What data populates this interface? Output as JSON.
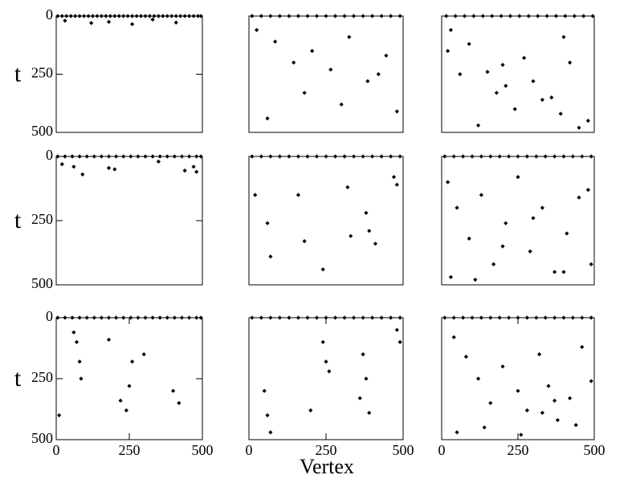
{
  "chart_data": [
    {
      "type": "scatter",
      "color": "#000000",
      "xlim": [
        0,
        500
      ],
      "ylim": [
        500,
        0
      ],
      "yticks": [
        0,
        250,
        500
      ],
      "ylabel": "t",
      "x": [
        5,
        20,
        35,
        50,
        65,
        80,
        95,
        110,
        125,
        140,
        155,
        170,
        185,
        200,
        215,
        230,
        245,
        260,
        275,
        290,
        305,
        320,
        335,
        350,
        365,
        380,
        395,
        410,
        425,
        440,
        455,
        470,
        485,
        495,
        30,
        120,
        180,
        260,
        330,
        410
      ],
      "y": [
        0,
        0,
        0,
        0,
        0,
        0,
        0,
        0,
        0,
        0,
        0,
        0,
        0,
        0,
        0,
        0,
        0,
        0,
        0,
        0,
        0,
        0,
        0,
        0,
        0,
        0,
        0,
        0,
        0,
        0,
        0,
        0,
        0,
        0,
        20,
        30,
        25,
        35,
        15,
        28
      ]
    },
    {
      "type": "scatter",
      "color": "#000000",
      "xlim": [
        0,
        500
      ],
      "ylim": [
        500,
        0
      ],
      "x": [
        10,
        40,
        70,
        100,
        130,
        160,
        190,
        220,
        250,
        280,
        310,
        340,
        370,
        400,
        430,
        460,
        490,
        25,
        85,
        145,
        205,
        265,
        325,
        385,
        445,
        60,
        180,
        300,
        420,
        480
      ],
      "y": [
        0,
        0,
        0,
        0,
        0,
        0,
        0,
        0,
        0,
        0,
        0,
        0,
        0,
        0,
        0,
        0,
        0,
        60,
        110,
        200,
        150,
        230,
        90,
        280,
        170,
        440,
        330,
        380,
        250,
        410
      ]
    },
    {
      "type": "scatter",
      "color": "#000000",
      "xlim": [
        0,
        500
      ],
      "ylim": [
        500,
        0
      ],
      "x": [
        15,
        45,
        75,
        105,
        135,
        165,
        195,
        225,
        255,
        285,
        315,
        345,
        375,
        405,
        435,
        465,
        495,
        30,
        90,
        150,
        210,
        270,
        330,
        390,
        450,
        60,
        180,
        300,
        420,
        480,
        120,
        240,
        360,
        20,
        200,
        400
      ],
      "y": [
        0,
        0,
        0,
        0,
        0,
        0,
        0,
        0,
        0,
        0,
        0,
        0,
        0,
        0,
        0,
        0,
        0,
        60,
        120,
        240,
        300,
        180,
        360,
        420,
        480,
        250,
        330,
        280,
        200,
        450,
        470,
        400,
        350,
        150,
        210,
        90
      ]
    },
    {
      "type": "scatter",
      "color": "#000000",
      "xlim": [
        0,
        500
      ],
      "ylim": [
        500,
        0
      ],
      "yticks": [
        0,
        250,
        500
      ],
      "ylabel": "t",
      "x": [
        5,
        30,
        55,
        80,
        105,
        130,
        155,
        180,
        205,
        230,
        255,
        280,
        305,
        330,
        355,
        380,
        405,
        430,
        455,
        480,
        495,
        20,
        60,
        90,
        180,
        200,
        350,
        440,
        470,
        480
      ],
      "y": [
        0,
        0,
        0,
        0,
        0,
        0,
        0,
        0,
        0,
        0,
        0,
        0,
        0,
        0,
        0,
        0,
        0,
        0,
        0,
        0,
        0,
        30,
        40,
        70,
        45,
        50,
        20,
        55,
        40,
        60
      ]
    },
    {
      "type": "scatter",
      "color": "#000000",
      "xlim": [
        0,
        500
      ],
      "ylim": [
        500,
        0
      ],
      "x": [
        10,
        40,
        70,
        100,
        130,
        160,
        190,
        220,
        250,
        280,
        310,
        340,
        370,
        400,
        430,
        460,
        490,
        20,
        60,
        160,
        180,
        320,
        330,
        380,
        390,
        470,
        480,
        70,
        240,
        410
      ],
      "y": [
        0,
        0,
        0,
        0,
        0,
        0,
        0,
        0,
        0,
        0,
        0,
        0,
        0,
        0,
        0,
        0,
        0,
        150,
        260,
        150,
        330,
        120,
        310,
        220,
        290,
        80,
        110,
        390,
        440,
        340
      ]
    },
    {
      "type": "scatter",
      "color": "#000000",
      "xlim": [
        0,
        500
      ],
      "ylim": [
        500,
        0
      ],
      "x": [
        10,
        40,
        70,
        100,
        130,
        160,
        190,
        220,
        250,
        280,
        310,
        340,
        370,
        400,
        430,
        460,
        490,
        20,
        50,
        90,
        130,
        170,
        210,
        250,
        290,
        330,
        370,
        410,
        450,
        490,
        30,
        110,
        200,
        300,
        400,
        480
      ],
      "y": [
        0,
        0,
        0,
        0,
        0,
        0,
        0,
        0,
        0,
        0,
        0,
        0,
        0,
        0,
        0,
        0,
        0,
        100,
        200,
        320,
        150,
        420,
        260,
        80,
        370,
        200,
        450,
        300,
        160,
        420,
        470,
        480,
        350,
        240,
        450,
        130
      ]
    },
    {
      "type": "scatter",
      "color": "#000000",
      "xlim": [
        0,
        500
      ],
      "ylim": [
        500,
        0
      ],
      "xticks": [
        0,
        250,
        500
      ],
      "yticks": [
        0,
        250,
        500
      ],
      "ylabel": "t",
      "x": [
        5,
        30,
        55,
        80,
        105,
        130,
        155,
        180,
        205,
        230,
        255,
        280,
        305,
        330,
        355,
        380,
        405,
        430,
        455,
        480,
        495,
        70,
        80,
        85,
        260,
        250,
        220,
        240,
        300,
        400,
        420,
        10,
        60,
        180
      ],
      "y": [
        0,
        0,
        0,
        0,
        0,
        0,
        0,
        0,
        0,
        0,
        0,
        0,
        0,
        0,
        0,
        0,
        0,
        0,
        0,
        0,
        0,
        100,
        180,
        250,
        180,
        280,
        340,
        380,
        150,
        300,
        350,
        400,
        60,
        90
      ]
    },
    {
      "type": "scatter",
      "color": "#000000",
      "xlim": [
        0,
        500
      ],
      "ylim": [
        500,
        0
      ],
      "xticks": [
        0,
        250,
        500
      ],
      "xlabel": "Vertex",
      "x": [
        10,
        40,
        70,
        100,
        130,
        160,
        190,
        220,
        250,
        280,
        310,
        340,
        370,
        400,
        430,
        460,
        490,
        240,
        250,
        260,
        370,
        380,
        360,
        390,
        50,
        60,
        70,
        200,
        480,
        490
      ],
      "y": [
        0,
        0,
        0,
        0,
        0,
        0,
        0,
        0,
        0,
        0,
        0,
        0,
        0,
        0,
        0,
        0,
        0,
        100,
        180,
        220,
        150,
        250,
        330,
        390,
        300,
        400,
        470,
        380,
        50,
        100
      ]
    },
    {
      "type": "scatter",
      "color": "#000000",
      "xlim": [
        0,
        500
      ],
      "ylim": [
        500,
        0
      ],
      "xticks": [
        0,
        250,
        500
      ],
      "x": [
        10,
        40,
        70,
        100,
        130,
        160,
        190,
        220,
        250,
        280,
        310,
        340,
        370,
        400,
        430,
        460,
        490,
        40,
        80,
        120,
        160,
        200,
        250,
        280,
        320,
        350,
        380,
        420,
        460,
        490,
        50,
        140,
        260,
        330,
        370,
        440
      ],
      "y": [
        0,
        0,
        0,
        0,
        0,
        0,
        0,
        0,
        0,
        0,
        0,
        0,
        0,
        0,
        0,
        0,
        0,
        80,
        160,
        250,
        350,
        200,
        300,
        380,
        150,
        280,
        420,
        330,
        120,
        260,
        470,
        450,
        480,
        390,
        340,
        440
      ]
    }
  ]
}
